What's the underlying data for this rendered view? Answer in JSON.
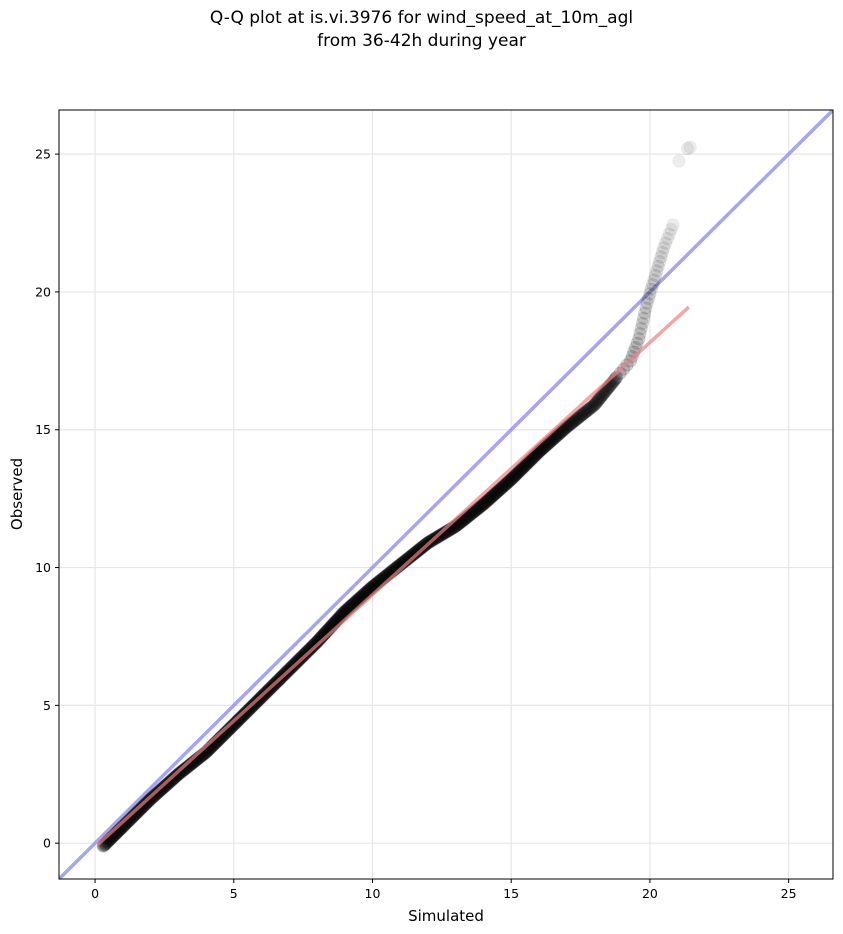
{
  "chart_data": {
    "type": "scatter",
    "title_line1": "Q-Q plot at is.vi.3976 for wind_speed_at_10m_agl",
    "title_line2": "from 36-42h during year",
    "xlabel": "Simulated",
    "ylabel": "Observed",
    "xlim": [
      -1.3,
      26.6
    ],
    "ylim": [
      -1.3,
      26.6
    ],
    "xticks": [
      0,
      5,
      10,
      15,
      20,
      25
    ],
    "yticks": [
      0,
      5,
      10,
      15,
      20,
      25
    ],
    "grid": true,
    "identity_line": {
      "color": "#7f7fef"
    },
    "fit_line": {
      "x": [
        0.1,
        21.4
      ],
      "y": [
        -0.05,
        19.45
      ],
      "color": "#f08080"
    },
    "points_color": "#000000",
    "points_curve": [
      [
        0.3,
        -0.1
      ],
      [
        0.6,
        0.2
      ],
      [
        1.0,
        0.6
      ],
      [
        2.0,
        1.6
      ],
      [
        3.0,
        2.5
      ],
      [
        4.0,
        3.3
      ],
      [
        5.0,
        4.3
      ],
      [
        6.0,
        5.3
      ],
      [
        7.0,
        6.3
      ],
      [
        8.0,
        7.3
      ],
      [
        9.0,
        8.4
      ],
      [
        10.0,
        9.3
      ],
      [
        11.0,
        10.1
      ],
      [
        12.0,
        10.9
      ],
      [
        13.0,
        11.5
      ],
      [
        14.0,
        12.3
      ],
      [
        15.0,
        13.2
      ],
      [
        16.0,
        14.2
      ],
      [
        17.0,
        15.1
      ],
      [
        18.0,
        15.9
      ],
      [
        18.8,
        16.9
      ],
      [
        19.3,
        17.5
      ],
      [
        19.6,
        18.3
      ],
      [
        19.9,
        19.6
      ],
      [
        20.2,
        20.6
      ],
      [
        20.5,
        21.6
      ],
      [
        20.9,
        22.6
      ]
    ],
    "outliers": [
      [
        21.05,
        24.75
      ],
      [
        21.45,
        25.25
      ],
      [
        21.35,
        25.2
      ]
    ]
  }
}
